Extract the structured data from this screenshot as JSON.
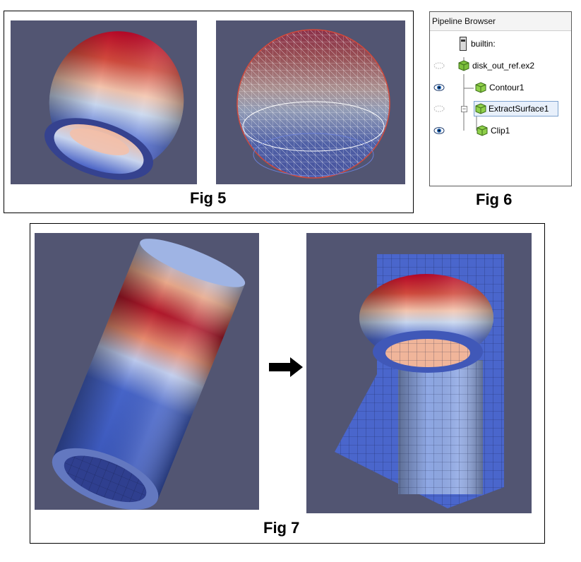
{
  "figures": {
    "fig5": {
      "caption": "Fig 5"
    },
    "fig6": {
      "caption": "Fig 6"
    },
    "fig7": {
      "caption": "Fig 7"
    }
  },
  "pipeline_browser": {
    "title": "Pipeline Browser",
    "items": [
      {
        "label": "builtin:",
        "icon": "server-icon",
        "visibility": "none"
      },
      {
        "label": "disk_out_ref.ex2",
        "icon": "source-cube-icon",
        "visibility": "hidden"
      },
      {
        "label": "Contour1",
        "icon": "filter-cube-icon",
        "visibility": "visible"
      },
      {
        "label": "ExtractSurface1",
        "icon": "filter-cube-icon",
        "visibility": "hidden",
        "selected": true,
        "expanded": true
      },
      {
        "label": "Clip1",
        "icon": "filter-cube-icon",
        "visibility": "visible"
      }
    ]
  },
  "colors": {
    "viewport_background": "#525572",
    "cool_blue": "#3b4cc0",
    "warm_red": "#b40426",
    "neutral": "#dddddd"
  }
}
